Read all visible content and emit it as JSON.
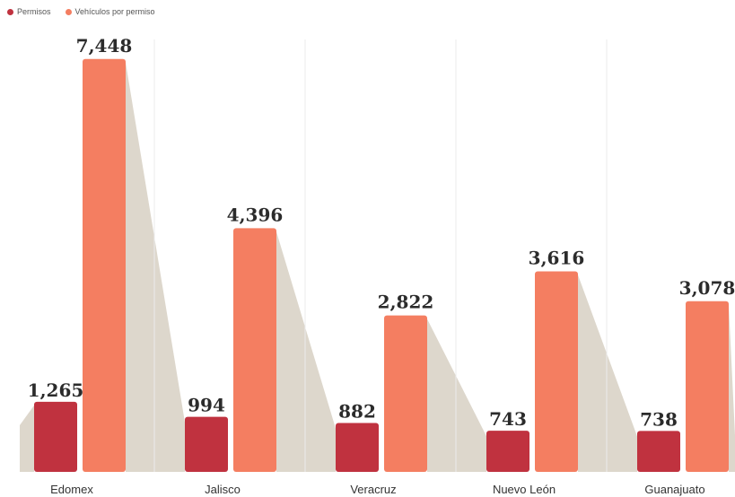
{
  "chart_data": {
    "type": "bar",
    "categories": [
      "Edomex",
      "Jalisco",
      "Veracruz",
      "Nuevo León",
      "Guanajuato"
    ],
    "series": [
      {
        "name": "Permisos",
        "values": [
          1265,
          994,
          882,
          743,
          738
        ],
        "labels": [
          "1,265",
          "994",
          "882",
          "743",
          "738"
        ],
        "color": "#c0323f"
      },
      {
        "name": "Vehículos por permiso",
        "values": [
          7448,
          4396,
          2822,
          3616,
          3078
        ],
        "labels": [
          "7,448",
          "4,396",
          "2,822",
          "3,616",
          "3,078"
        ],
        "color": "#f47e61"
      }
    ],
    "ylim": [
      0,
      7800
    ],
    "grid": false,
    "legend_position": "top-left"
  },
  "colors": {
    "shadow": "#ddd7cc",
    "divider": "#ebebeb",
    "text": "#2b2b2b"
  }
}
